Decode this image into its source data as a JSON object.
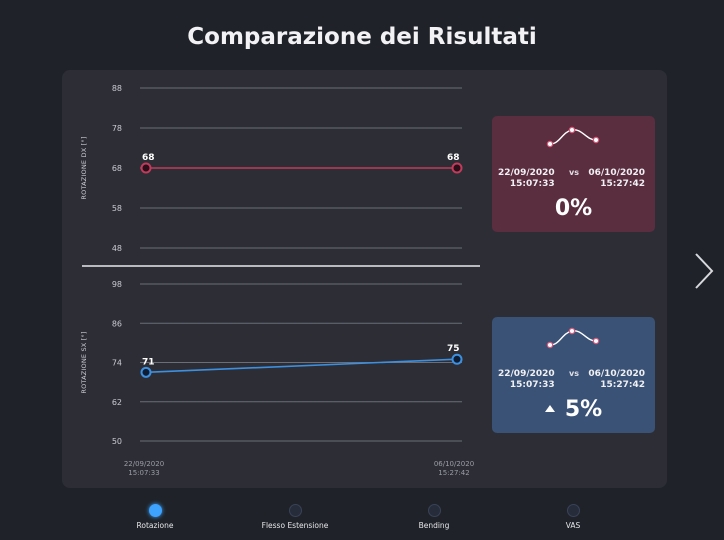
{
  "title": "Comparazione dei Risultati",
  "chart_data": [
    {
      "type": "line",
      "ylabel": "ROTAZIONE DX [°]",
      "y_ticks": [
        48,
        58,
        68,
        78,
        88
      ],
      "ylim": [
        48,
        88
      ],
      "x": [
        "22/09/2020 15:07:33",
        "06/10/2020 15:27:42"
      ],
      "series": [
        {
          "values": [
            68,
            68
          ],
          "data_labels": [
            "68",
            "68"
          ],
          "color": "#c23a5c"
        }
      ],
      "grid": true
    },
    {
      "type": "line",
      "ylabel": "ROTAZIONE SX [°]",
      "y_ticks": [
        50,
        62,
        74,
        86,
        98
      ],
      "ylim": [
        50,
        98
      ],
      "x": [
        "22/09/2020 15:07:33",
        "06/10/2020 15:27:42"
      ],
      "x_tick_labels": [
        [
          "22/09/2020",
          "15:07:33"
        ],
        [
          "06/10/2020",
          "15:27:42"
        ]
      ],
      "series": [
        {
          "values": [
            71,
            75
          ],
          "data_labels": [
            "71",
            "75"
          ],
          "color": "#3d8fe0"
        }
      ],
      "grid": true
    }
  ],
  "comparisons": {
    "dx": {
      "date_a": "22/09/2020",
      "time_a": "15:07:33",
      "vs": "vs",
      "date_b": "06/10/2020",
      "time_b": "15:27:42",
      "percent": "0%",
      "color": "#5a2d3f"
    },
    "sx": {
      "date_a": "22/09/2020",
      "time_a": "15:07:33",
      "vs": "vs",
      "date_b": "06/10/2020",
      "time_b": "15:27:42",
      "percent": "5%",
      "trend_icon": "triangle-up-icon",
      "color": "#3a5275"
    }
  },
  "next_icon": "chevron-right-icon",
  "pager": {
    "items": [
      {
        "label": "Rotazione",
        "active": true
      },
      {
        "label": "Flesso Estensione",
        "active": false
      },
      {
        "label": "Bending",
        "active": false
      },
      {
        "label": "VAS",
        "active": false
      }
    ]
  }
}
